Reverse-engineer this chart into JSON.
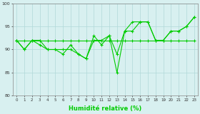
{
  "xlabel": "Humidité relative (%)",
  "bg_color": "#d8f0f0",
  "grid_color": "#b0d8d8",
  "line_color": "#00cc00",
  "ylim": [
    80,
    100
  ],
  "xlim": [
    -0.5,
    23.5
  ],
  "yticks": [
    80,
    85,
    90,
    95,
    100
  ],
  "xticks": [
    0,
    1,
    2,
    3,
    4,
    5,
    6,
    7,
    8,
    9,
    10,
    11,
    12,
    13,
    14,
    15,
    16,
    17,
    18,
    19,
    20,
    21,
    22,
    23
  ],
  "line1": [
    92,
    90,
    92,
    91,
    90,
    90,
    89,
    91,
    89,
    88,
    93,
    91,
    93,
    89,
    94,
    96,
    96,
    96,
    92,
    92,
    94,
    94,
    95,
    97
  ],
  "line2": [
    92,
    90,
    92,
    92,
    90,
    90,
    90,
    90,
    89,
    88,
    92,
    92,
    93,
    85,
    94,
    94,
    96,
    96,
    92,
    92,
    94,
    94,
    95,
    97
  ],
  "line3": [
    92,
    92,
    92,
    92,
    92,
    92,
    92,
    92,
    92,
    92,
    92,
    92,
    92,
    92,
    92,
    92,
    92,
    92,
    92,
    92,
    92,
    92,
    92,
    92
  ],
  "xlabel_fontsize": 6,
  "tick_fontsize": 4,
  "linewidth": 0.8,
  "markersize": 2.5
}
